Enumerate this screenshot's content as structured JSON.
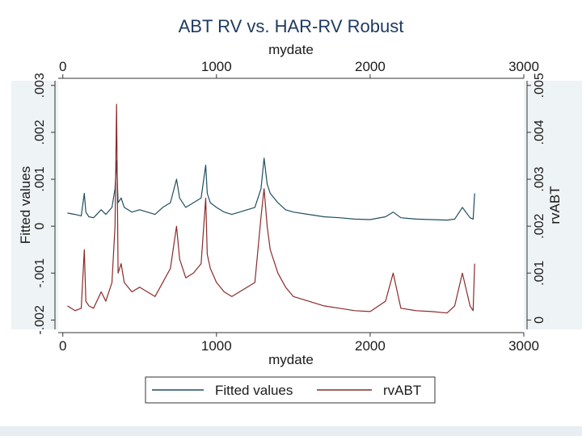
{
  "chart_data": {
    "type": "line",
    "title": "ABT RV vs. HAR-RV Robust",
    "x": {
      "label": "mydate",
      "ticks": [
        0,
        1000,
        2000,
        3000
      ],
      "tick_labels": [
        "0",
        "1000",
        "2000",
        "3000"
      ],
      "range": [
        -30,
        3000
      ]
    },
    "y_left": {
      "label": "Fitted values",
      "ticks": [
        -0.002,
        -0.001,
        0,
        0.001,
        0.002,
        0.003
      ],
      "tick_labels": [
        "-.002",
        "-.001",
        "0",
        ".001",
        ".002",
        ".003"
      ],
      "range": [
        -0.0022,
        0.0031
      ]
    },
    "y_right": {
      "label": "rvABT",
      "ticks": [
        0,
        0.001,
        0.002,
        0.003,
        0.004,
        0.005
      ],
      "tick_labels": [
        "0",
        ".001",
        ".002",
        ".003",
        ".004",
        ".005"
      ],
      "range": [
        -0.0002,
        0.0051
      ]
    },
    "series": [
      {
        "name": "Fitted values",
        "axis": "left",
        "color": "#1f4e5f",
        "x": [
          30,
          80,
          120,
          140,
          150,
          170,
          200,
          250,
          280,
          320,
          340,
          350,
          360,
          380,
          400,
          450,
          500,
          550,
          600,
          650,
          700,
          740,
          760,
          800,
          850,
          900,
          930,
          940,
          960,
          1000,
          1050,
          1100,
          1150,
          1200,
          1250,
          1290,
          1310,
          1330,
          1350,
          1400,
          1450,
          1500,
          1600,
          1700,
          1800,
          1900,
          2000,
          2100,
          2150,
          2200,
          2300,
          2400,
          2500,
          2550,
          2600,
          2650,
          2670,
          2680
        ],
        "values": [
          0.00028,
          0.00025,
          0.00022,
          0.0007,
          0.0003,
          0.0002,
          0.00018,
          0.00035,
          0.00025,
          0.0004,
          0.0008,
          0.0014,
          0.0005,
          0.0006,
          0.0004,
          0.0003,
          0.00035,
          0.0003,
          0.00025,
          0.0004,
          0.0005,
          0.001,
          0.0006,
          0.0004,
          0.0005,
          0.0006,
          0.0013,
          0.0007,
          0.0005,
          0.0004,
          0.0003,
          0.00025,
          0.0003,
          0.00035,
          0.0004,
          0.0008,
          0.00145,
          0.0009,
          0.0007,
          0.0005,
          0.00035,
          0.0003,
          0.00025,
          0.0002,
          0.00018,
          0.00015,
          0.00014,
          0.0002,
          0.0003,
          0.00018,
          0.00015,
          0.00014,
          0.00013,
          0.00015,
          0.0004,
          0.00018,
          0.00015,
          0.0007
        ]
      },
      {
        "name": "rvABT",
        "axis": "right",
        "color": "#8b2a2a",
        "x": [
          30,
          80,
          120,
          140,
          150,
          170,
          200,
          250,
          280,
          320,
          340,
          350,
          360,
          380,
          400,
          450,
          500,
          550,
          600,
          650,
          700,
          740,
          760,
          800,
          850,
          900,
          930,
          940,
          960,
          1000,
          1050,
          1100,
          1150,
          1200,
          1250,
          1290,
          1310,
          1330,
          1350,
          1400,
          1450,
          1500,
          1600,
          1700,
          1800,
          1900,
          2000,
          2100,
          2150,
          2200,
          2300,
          2400,
          2500,
          2550,
          2600,
          2650,
          2670,
          2680
        ],
        "values": [
          0.0003,
          0.0002,
          0.00025,
          0.0015,
          0.0004,
          0.0003,
          0.00025,
          0.0006,
          0.0004,
          0.0008,
          0.002,
          0.0046,
          0.001,
          0.0012,
          0.0008,
          0.0006,
          0.0007,
          0.0006,
          0.0005,
          0.0008,
          0.0011,
          0.002,
          0.0013,
          0.0009,
          0.001,
          0.0012,
          0.0026,
          0.0014,
          0.0011,
          0.0008,
          0.0006,
          0.0005,
          0.0006,
          0.0007,
          0.0008,
          0.0022,
          0.0028,
          0.002,
          0.0015,
          0.001,
          0.0007,
          0.0005,
          0.0004,
          0.0003,
          0.00025,
          0.0002,
          0.00018,
          0.0004,
          0.001,
          0.00025,
          0.0002,
          0.00018,
          0.00015,
          0.0003,
          0.001,
          0.0003,
          0.0002,
          0.0012
        ]
      }
    ],
    "legend": {
      "position": "bottom",
      "entries": [
        "Fitted values",
        "rvABT"
      ]
    }
  }
}
